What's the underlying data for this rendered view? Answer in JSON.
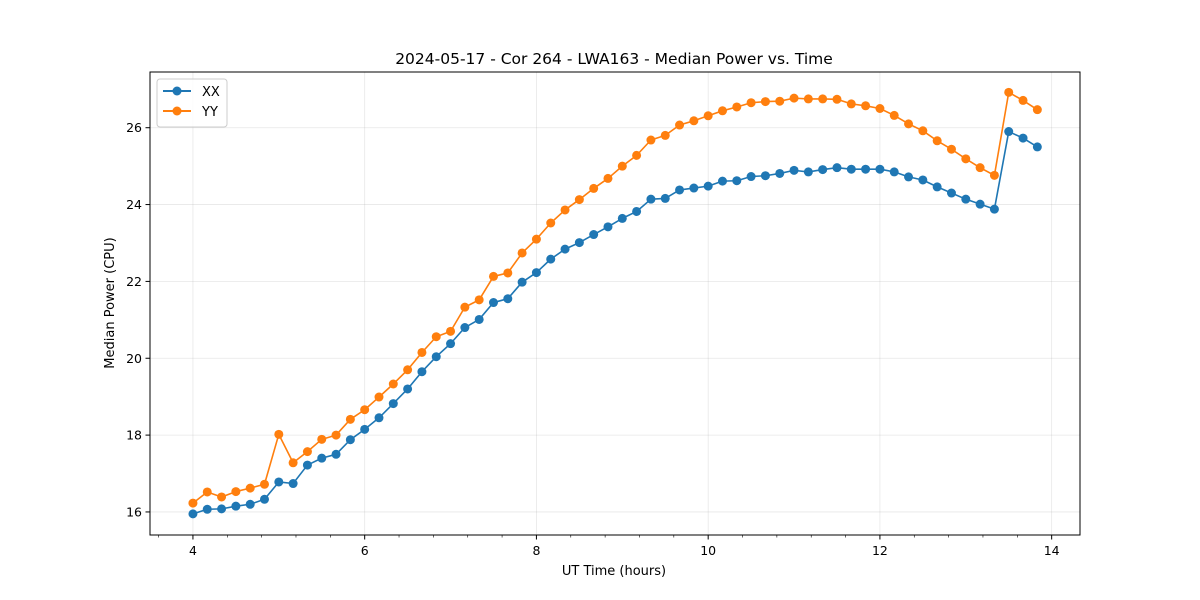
{
  "chart_data": {
    "type": "line",
    "title": "2024-05-17 - Cor 264 - LWA163 - Median Power vs. Time",
    "xlabel": "UT Time (hours)",
    "ylabel": "Median Power (CPU)",
    "xlim": [
      3.5,
      14.33
    ],
    "ylim": [
      15.4,
      27.45
    ],
    "xticks": [
      4,
      6,
      8,
      10,
      12,
      14
    ],
    "yticks": [
      16,
      18,
      20,
      22,
      24,
      26
    ],
    "grid": true,
    "legend": "upper-left",
    "x": [
      4.0,
      4.1667,
      4.3333,
      4.5,
      4.6667,
      4.8333,
      5.0,
      5.1667,
      5.3333,
      5.5,
      5.6667,
      5.8333,
      6.0,
      6.1667,
      6.3333,
      6.5,
      6.6667,
      6.8333,
      7.0,
      7.1667,
      7.3333,
      7.5,
      7.6667,
      7.8333,
      8.0,
      8.1667,
      8.3333,
      8.5,
      8.6667,
      8.8333,
      9.0,
      9.1667,
      9.3333,
      9.5,
      9.6667,
      9.8333,
      10.0,
      10.1667,
      10.3333,
      10.5,
      10.6667,
      10.8333,
      11.0,
      11.1667,
      11.3333,
      11.5,
      11.6667,
      11.8333,
      12.0,
      12.1667,
      12.3333,
      12.5,
      12.6667,
      12.8333,
      13.0,
      13.1667,
      13.3333,
      13.5,
      13.6667,
      13.8333
    ],
    "series": [
      {
        "name": "XX",
        "color": "#1f77b4",
        "values": [
          15.95,
          16.07,
          16.08,
          16.15,
          16.2,
          16.33,
          16.78,
          16.74,
          17.22,
          17.4,
          17.5,
          17.88,
          18.15,
          18.45,
          18.82,
          19.2,
          19.65,
          20.04,
          20.38,
          20.8,
          21.01,
          21.45,
          21.55,
          21.98,
          22.23,
          22.58,
          22.84,
          23.01,
          23.22,
          23.42,
          23.64,
          23.82,
          24.14,
          24.16,
          24.38,
          24.43,
          24.48,
          24.61,
          24.62,
          24.73,
          24.75,
          24.81,
          24.89,
          24.85,
          24.91,
          24.96,
          24.92,
          24.92,
          24.92,
          24.85,
          24.72,
          24.64,
          24.46,
          24.3,
          24.14,
          24.01,
          23.88,
          25.9,
          25.73,
          25.5
        ]
      },
      {
        "name": "YY",
        "color": "#ff7f0e",
        "values": [
          16.23,
          16.52,
          16.39,
          16.53,
          16.62,
          16.72,
          18.02,
          17.28,
          17.57,
          17.89,
          18.0,
          18.41,
          18.66,
          18.99,
          19.33,
          19.7,
          20.15,
          20.56,
          20.7,
          21.33,
          21.52,
          22.13,
          22.22,
          22.74,
          23.1,
          23.52,
          23.86,
          24.13,
          24.42,
          24.68,
          25.0,
          25.28,
          25.68,
          25.8,
          26.07,
          26.18,
          26.31,
          26.44,
          26.54,
          26.65,
          26.68,
          26.69,
          26.77,
          26.75,
          26.75,
          26.74,
          26.62,
          26.57,
          26.5,
          26.32,
          26.1,
          25.92,
          25.66,
          25.44,
          25.19,
          24.96,
          24.76,
          26.92,
          26.71,
          26.47
        ]
      }
    ]
  }
}
